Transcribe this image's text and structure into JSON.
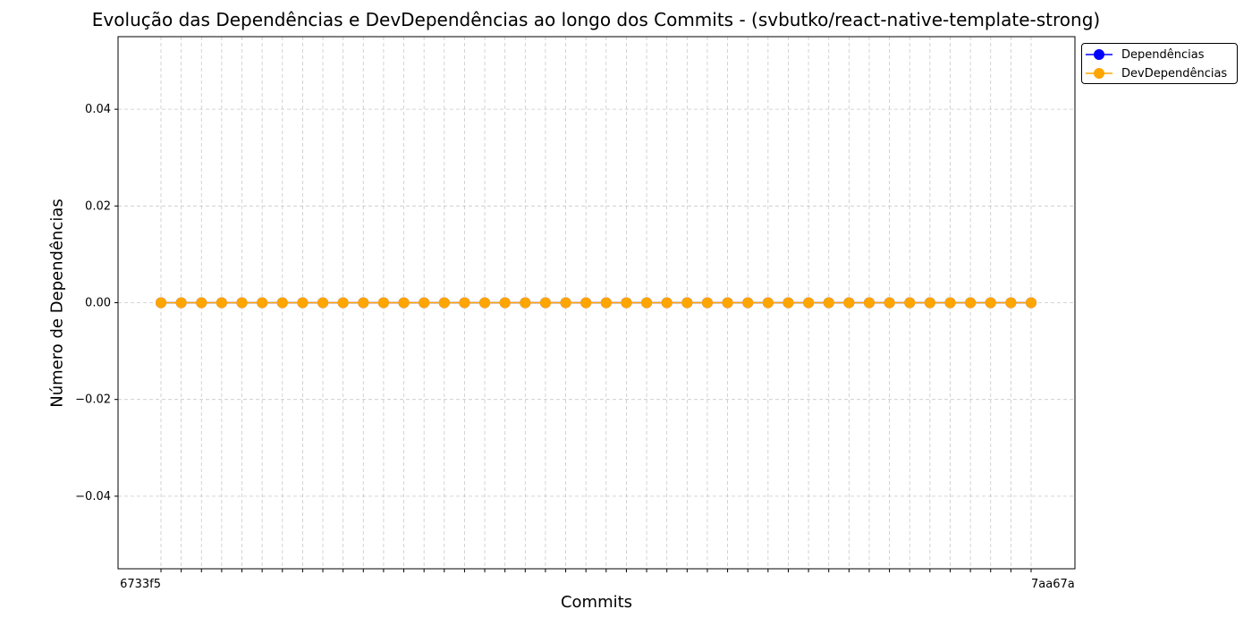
{
  "chart_data": {
    "type": "line",
    "title": "Evolução das Dependências e DevDependências ao longo dos Commits - (svbutko/react-native-template-strong)",
    "xlabel": "Commits",
    "ylabel": "Número de Dependências",
    "ylim": [
      -0.055,
      0.055
    ],
    "yticks": [
      -0.04,
      -0.02,
      0.0,
      0.02,
      0.04
    ],
    "ytick_labels": [
      "−0.04",
      "−0.02",
      "0.00",
      "0.02",
      "0.04"
    ],
    "grid": true,
    "legend_position": "outside top-right",
    "xtick_first_label": "6733f5",
    "xtick_last_label": "7aa67a",
    "point_count": 44,
    "series": [
      {
        "name": "Dependências",
        "color": "#0000ff",
        "marker": "circle",
        "values": [
          0,
          0,
          0,
          0,
          0,
          0,
          0,
          0,
          0,
          0,
          0,
          0,
          0,
          0,
          0,
          0,
          0,
          0,
          0,
          0,
          0,
          0,
          0,
          0,
          0,
          0,
          0,
          0,
          0,
          0,
          0,
          0,
          0,
          0,
          0,
          0,
          0,
          0,
          0,
          0,
          0,
          0,
          0,
          0
        ]
      },
      {
        "name": "DevDependências",
        "color": "#ffa500",
        "marker": "circle",
        "values": [
          0,
          0,
          0,
          0,
          0,
          0,
          0,
          0,
          0,
          0,
          0,
          0,
          0,
          0,
          0,
          0,
          0,
          0,
          0,
          0,
          0,
          0,
          0,
          0,
          0,
          0,
          0,
          0,
          0,
          0,
          0,
          0,
          0,
          0,
          0,
          0,
          0,
          0,
          0,
          0,
          0,
          0,
          0,
          0
        ]
      }
    ]
  }
}
